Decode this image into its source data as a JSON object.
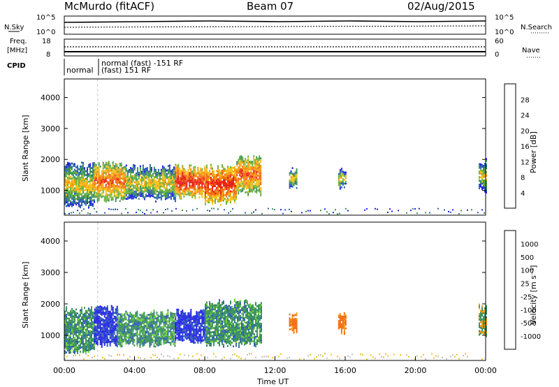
{
  "header": {
    "station": "McMurdo (fitACF)",
    "beam": "Beam 07",
    "date": "02/Aug/2015"
  },
  "summary_panel": {
    "n_sky_label": "N.Sky",
    "n_search_label": "N.Search",
    "n_ticks_left": [
      "10^5",
      "10^0"
    ],
    "n_ticks_right": [
      "10^5",
      "10^0"
    ],
    "freq_label_1": "Freq.",
    "freq_label_2": "[MHz]",
    "freq_ticks": [
      "18",
      "8"
    ],
    "nave_label": "Nave",
    "nave_ticks": [
      "60",
      "0"
    ],
    "cpid_label": "CPID",
    "cpid_segments": [
      "normal",
      "normal (fast) -151 RF",
      "(fast) 151 RF"
    ]
  },
  "colors": {
    "power": [
      "#1f1fe6",
      "#2f5fb4",
      "#3a8f5e",
      "#6db33f",
      "#f2c21a",
      "#f59a12",
      "#f26a10",
      "#e81e14"
    ],
    "velocity": [
      "#e81e14",
      "#f26a10",
      "#f59a12",
      "#f2c21a",
      "#bebebe",
      "#6fcf3c",
      "#3a8f5e",
      "#2f5fb4",
      "#1f1fe6"
    ]
  },
  "chart_data": [
    {
      "type": "heatmap",
      "title": "",
      "xlabel": "",
      "ylabel": "Slant Range [km]",
      "xlim": [
        "00:00",
        "24:00"
      ],
      "ylim": [
        200,
        4600
      ],
      "yticks": [
        "4000",
        "3000",
        "2000",
        "1000"
      ],
      "colorbar_label": "Power [dB]",
      "colorbar_ticks": [
        "28",
        "24",
        "20",
        "16",
        "12",
        "8",
        "4"
      ],
      "scatter_regions": [
        {
          "t_start": 0.0,
          "t_end": 1.7,
          "range_min": 500,
          "range_max": 1800,
          "level": "8-20 dB"
        },
        {
          "t_start": 1.7,
          "t_end": 3.5,
          "range_min": 700,
          "range_max": 1800,
          "level": "8-24 dB"
        },
        {
          "t_start": 3.5,
          "t_end": 6.3,
          "range_min": 700,
          "range_max": 1700,
          "level": "16-30 dB"
        },
        {
          "t_start": 6.3,
          "t_end": 8.0,
          "range_min": 800,
          "range_max": 1700,
          "level": "12-24 dB"
        },
        {
          "t_start": 8.0,
          "t_end": 9.8,
          "range_min": 600,
          "range_max": 1700,
          "level": "20-30 dB"
        },
        {
          "t_start": 9.8,
          "t_end": 11.2,
          "range_min": 900,
          "range_max": 2000,
          "level": "12-28 dB"
        },
        {
          "t_start": 12.8,
          "t_end": 13.2,
          "range_min": 1100,
          "range_max": 1600,
          "level": "8-16 dB"
        },
        {
          "t_start": 15.6,
          "t_end": 16.0,
          "range_min": 1100,
          "range_max": 1600,
          "level": "8-20 dB"
        },
        {
          "t_start": 23.6,
          "t_end": 24.0,
          "range_min": 1000,
          "range_max": 1900,
          "level": "8-20 dB"
        }
      ]
    },
    {
      "type": "heatmap",
      "title": "",
      "xlabel": "Time UT",
      "ylabel": "Slant Range [km]",
      "xlim": [
        "00:00",
        "24:00"
      ],
      "ylim": [
        200,
        4600
      ],
      "xticks": [
        "00:00",
        "04:00",
        "08:00",
        "12:00",
        "16:00",
        "20:00",
        "00:00"
      ],
      "yticks": [
        "4000",
        "3000",
        "2000",
        "1000"
      ],
      "colorbar_label": "Velocity [m s⁻¹]",
      "colorbar_ticks": [
        "1000",
        "500",
        "100",
        "25",
        "-25",
        "-100",
        "-500",
        "-1000"
      ],
      "scatter_regions": [
        {
          "t_start": 0.0,
          "t_end": 1.7,
          "range_min": 500,
          "range_max": 1800,
          "level": "100-500 m/s"
        },
        {
          "t_start": 1.7,
          "t_end": 3.0,
          "range_min": 700,
          "range_max": 1800,
          "level": "500-1000 m/s"
        },
        {
          "t_start": 3.0,
          "t_end": 6.3,
          "range_min": 700,
          "range_max": 1700,
          "level": "100-500 m/s"
        },
        {
          "t_start": 6.3,
          "t_end": 8.0,
          "range_min": 800,
          "range_max": 1700,
          "level": "500-1000 m/s"
        },
        {
          "t_start": 8.0,
          "t_end": 11.2,
          "range_min": 700,
          "range_max": 2000,
          "level": "100-500 m/s"
        },
        {
          "t_start": 12.8,
          "t_end": 13.2,
          "range_min": 1100,
          "range_max": 1600,
          "level": "-100 to -500 m/s"
        },
        {
          "t_start": 15.6,
          "t_end": 16.0,
          "range_min": 1100,
          "range_max": 1600,
          "level": "-100 to -500 m/s"
        },
        {
          "t_start": 23.6,
          "t_end": 24.0,
          "range_min": 1000,
          "range_max": 1900,
          "level": "-100 to 100 m/s"
        }
      ]
    }
  ]
}
